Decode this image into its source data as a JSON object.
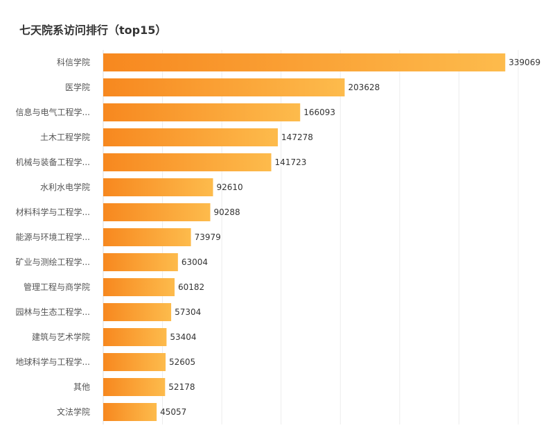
{
  "chart_data": {
    "type": "bar",
    "orientation": "horizontal",
    "title": "七天院系访问排行（top15）",
    "categories": [
      "科信学院",
      "医学院",
      "信息与电气工程学...",
      "土木工程学院",
      "机械与装备工程学...",
      "水利水电学院",
      "材料科学与工程学...",
      "能源与环境工程学...",
      "矿业与测绘工程学...",
      "管理工程与商学院",
      "园林与生态工程学...",
      "建筑与艺术学院",
      "地球科学与工程学...",
      "其他",
      "文法学院"
    ],
    "values": [
      339069,
      203628,
      166093,
      147278,
      141723,
      92610,
      90288,
      73979,
      63004,
      60182,
      57304,
      53404,
      52605,
      52178,
      45057
    ],
    "value_labels": [
      "339069",
      "203628",
      "166093",
      "147278",
      "141723",
      "92610",
      "90288",
      "73979",
      "63004",
      "60182",
      "57304",
      "53404",
      "52605",
      "52178",
      "45057"
    ],
    "xlim": [
      0,
      350000
    ],
    "grid": true,
    "xticks_shown": false,
    "colors": {
      "bar_start": "#f7881f",
      "bar_end": "#fdbb4c",
      "grid": "#ececec",
      "axis": "#dddddd"
    }
  }
}
